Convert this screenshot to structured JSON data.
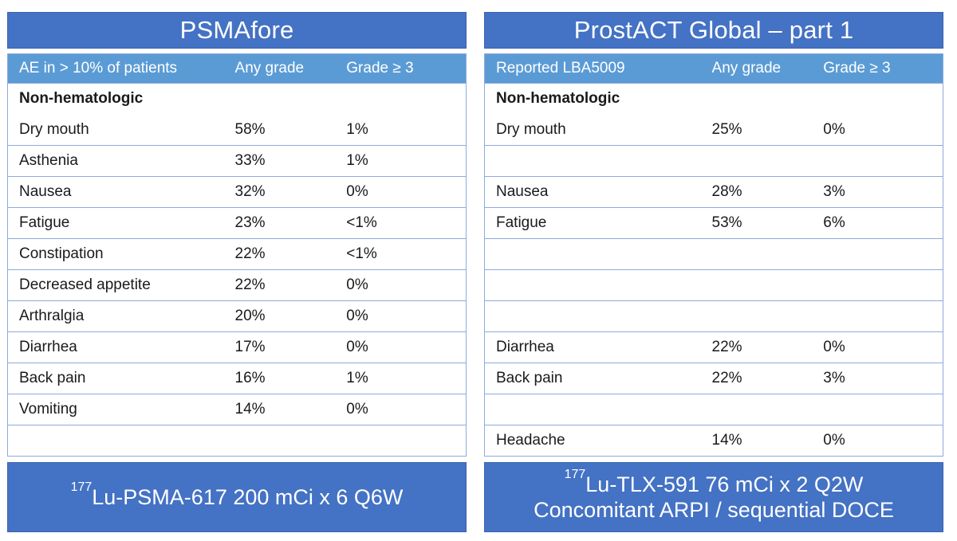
{
  "left": {
    "title": "PSMAfore",
    "headers": [
      "AE in > 10% of patients",
      "Any grade",
      "Grade ≥ 3"
    ],
    "section_label": "Non-hematologic",
    "rows": [
      [
        "Dry mouth",
        "58%",
        "1%"
      ],
      [
        "Asthenia",
        "33%",
        "1%"
      ],
      [
        "Nausea",
        "32%",
        "0%"
      ],
      [
        "Fatigue",
        "23%",
        "<1%"
      ],
      [
        "Constipation",
        "22%",
        "<1%"
      ],
      [
        "Decreased appetite",
        "22%",
        "0%"
      ],
      [
        "Arthralgia",
        "20%",
        "0%"
      ],
      [
        "Diarrhea",
        "17%",
        "0%"
      ],
      [
        "Back pain",
        "16%",
        "1%"
      ],
      [
        "Vomiting",
        "14%",
        "0%"
      ],
      [
        "",
        "",
        ""
      ]
    ],
    "footer": {
      "sup": "177",
      "line1": "Lu-PSMA-617 200 mCi x 6 Q6W"
    }
  },
  "right": {
    "title": "ProstACT Global – part 1",
    "headers": [
      "Reported LBA5009",
      "Any grade",
      "Grade ≥ 3"
    ],
    "section_label": "Non-hematologic",
    "rows": [
      [
        "Dry mouth",
        "25%",
        "0%"
      ],
      [
        "",
        "",
        ""
      ],
      [
        "Nausea",
        "28%",
        "3%"
      ],
      [
        "Fatigue",
        "53%",
        "6%"
      ],
      [
        "",
        "",
        ""
      ],
      [
        "",
        "",
        ""
      ],
      [
        "",
        "",
        ""
      ],
      [
        "Diarrhea",
        "22%",
        "0%"
      ],
      [
        "Back pain",
        "22%",
        "3%"
      ],
      [
        "",
        "",
        ""
      ],
      [
        "Headache",
        "14%",
        "0%"
      ]
    ],
    "footer": {
      "sup": "177",
      "line1": "Lu-TLX-591 76 mCi x 2 Q2W",
      "line2": "Concomitant ARPI / sequential DOCE"
    }
  }
}
